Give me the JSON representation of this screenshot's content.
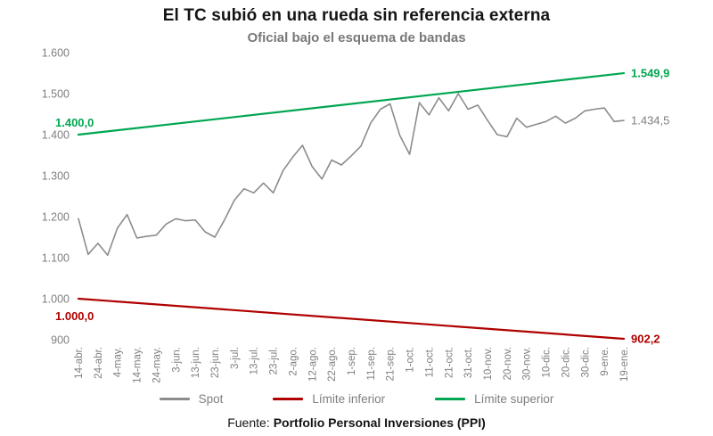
{
  "header": {
    "title": "El TC subió en una rueda sin referencia externa",
    "subtitle": "Oficial bajo el esquema de bandas"
  },
  "chart_data": {
    "type": "line",
    "title": "El TC subió en una rueda sin referencia externa",
    "subtitle": "Oficial bajo el esquema de bandas",
    "ylim": [
      900,
      1600
    ],
    "grid": false,
    "legend_position": "bottom",
    "yticks": [
      {
        "value": 1600,
        "label": "1.600"
      },
      {
        "value": 1500,
        "label": "1.500"
      },
      {
        "value": 1400,
        "label": "1.400"
      },
      {
        "value": 1300,
        "label": "1.300"
      },
      {
        "value": 1200,
        "label": "1.200"
      },
      {
        "value": 1100,
        "label": "1.100"
      },
      {
        "value": 1000,
        "label": "1.000"
      },
      {
        "value": 900,
        "label": "900"
      }
    ],
    "x_tick_labels": [
      "14-abr.",
      "24-abr.",
      "4-may.",
      "14-may.",
      "24-may.",
      "3-jun.",
      "13-jun.",
      "23-jun.",
      "3-jul.",
      "13-jul.",
      "23-jul.",
      "2-ago.",
      "12-ago.",
      "22-ago.",
      "1-sep.",
      "11-sep.",
      "21-sep.",
      "1-oct.",
      "11-oct.",
      "21-oct.",
      "31-oct.",
      "10-nov.",
      "20-nov.",
      "30-nov.",
      "10-dic.",
      "20-dic.",
      "30-dic.",
      "9-ene.",
      "19-ene."
    ],
    "samples_per_tick_interval": 2,
    "series": [
      {
        "name": "Spot",
        "color": "#8c8c8c",
        "shape": "samples",
        "values": [
          1195,
          1108,
          1135,
          1106,
          1172,
          1205,
          1148,
          1152,
          1155,
          1182,
          1195,
          1190,
          1192,
          1163,
          1150,
          1192,
          1240,
          1268,
          1258,
          1282,
          1258,
          1312,
          1345,
          1374,
          1322,
          1292,
          1338,
          1326,
          1348,
          1372,
          1428,
          1462,
          1475,
          1398,
          1352,
          1478,
          1448,
          1490,
          1458,
          1500,
          1462,
          1472,
          1435,
          1400,
          1395,
          1440,
          1418,
          1425,
          1432,
          1445,
          1428,
          1440,
          1458,
          1462,
          1465,
          1432,
          1434.5
        ],
        "end_label": "1.434,5",
        "end_label_color": "#7f7f7f",
        "end_label_bold": false
      },
      {
        "name": "Límite inferior",
        "color": "#b00000",
        "shape": "linear",
        "start": 1000.0,
        "end": 902.2,
        "start_label": "1.000,0",
        "start_label_side": "below",
        "end_label": "902,2",
        "end_label_color": "#b00000",
        "end_label_bold": true
      },
      {
        "name": "Límite superior",
        "color": "#00a651",
        "shape": "linear",
        "start": 1400.0,
        "end": 1549.9,
        "start_label": "1.400,0",
        "start_label_side": "above",
        "end_label": "1.549,9",
        "end_label_color": "#00a651",
        "end_label_bold": true
      }
    ],
    "legend": [
      {
        "label": "Spot",
        "color": "#8c8c8c"
      },
      {
        "label": "Límite inferior",
        "color": "#b00000"
      },
      {
        "label": "Límite superior",
        "color": "#00a651"
      }
    ]
  },
  "footer": {
    "source_prefix": "Fuente:",
    "source_name": "Portfolio Personal Inversiones (PPI)"
  }
}
